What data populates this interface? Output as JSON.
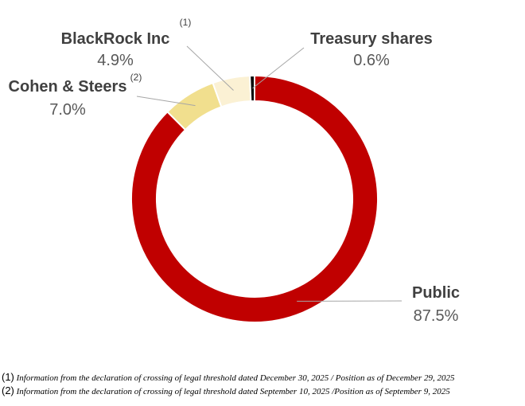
{
  "chart_data": {
    "type": "pie",
    "donut": true,
    "categories": [
      "Public",
      "Cohen & Steers",
      "BlackRock Inc",
      "Treasury shares"
    ],
    "values": [
      87.5,
      7.0,
      4.9,
      0.6
    ],
    "value_labels": [
      "87.5%",
      "7.0%",
      "4.9%",
      "0.6%"
    ],
    "superscripts": [
      "",
      "(2)",
      "(1)",
      ""
    ],
    "colors": [
      "#c00000",
      "#f1df8e",
      "#fbf1d4",
      "#000000"
    ]
  },
  "footnotes": [
    {
      "num": "(1)",
      "text": "Information  from the declaration of crossing of legal threshold dated  December 30, 2025 / Position as of December 29, 2025"
    },
    {
      "num": "(2)",
      "text": "Information from the declaration of crossing of legal threshold dated September 10, 2025 /Position as of  September 9, 2025"
    }
  ]
}
